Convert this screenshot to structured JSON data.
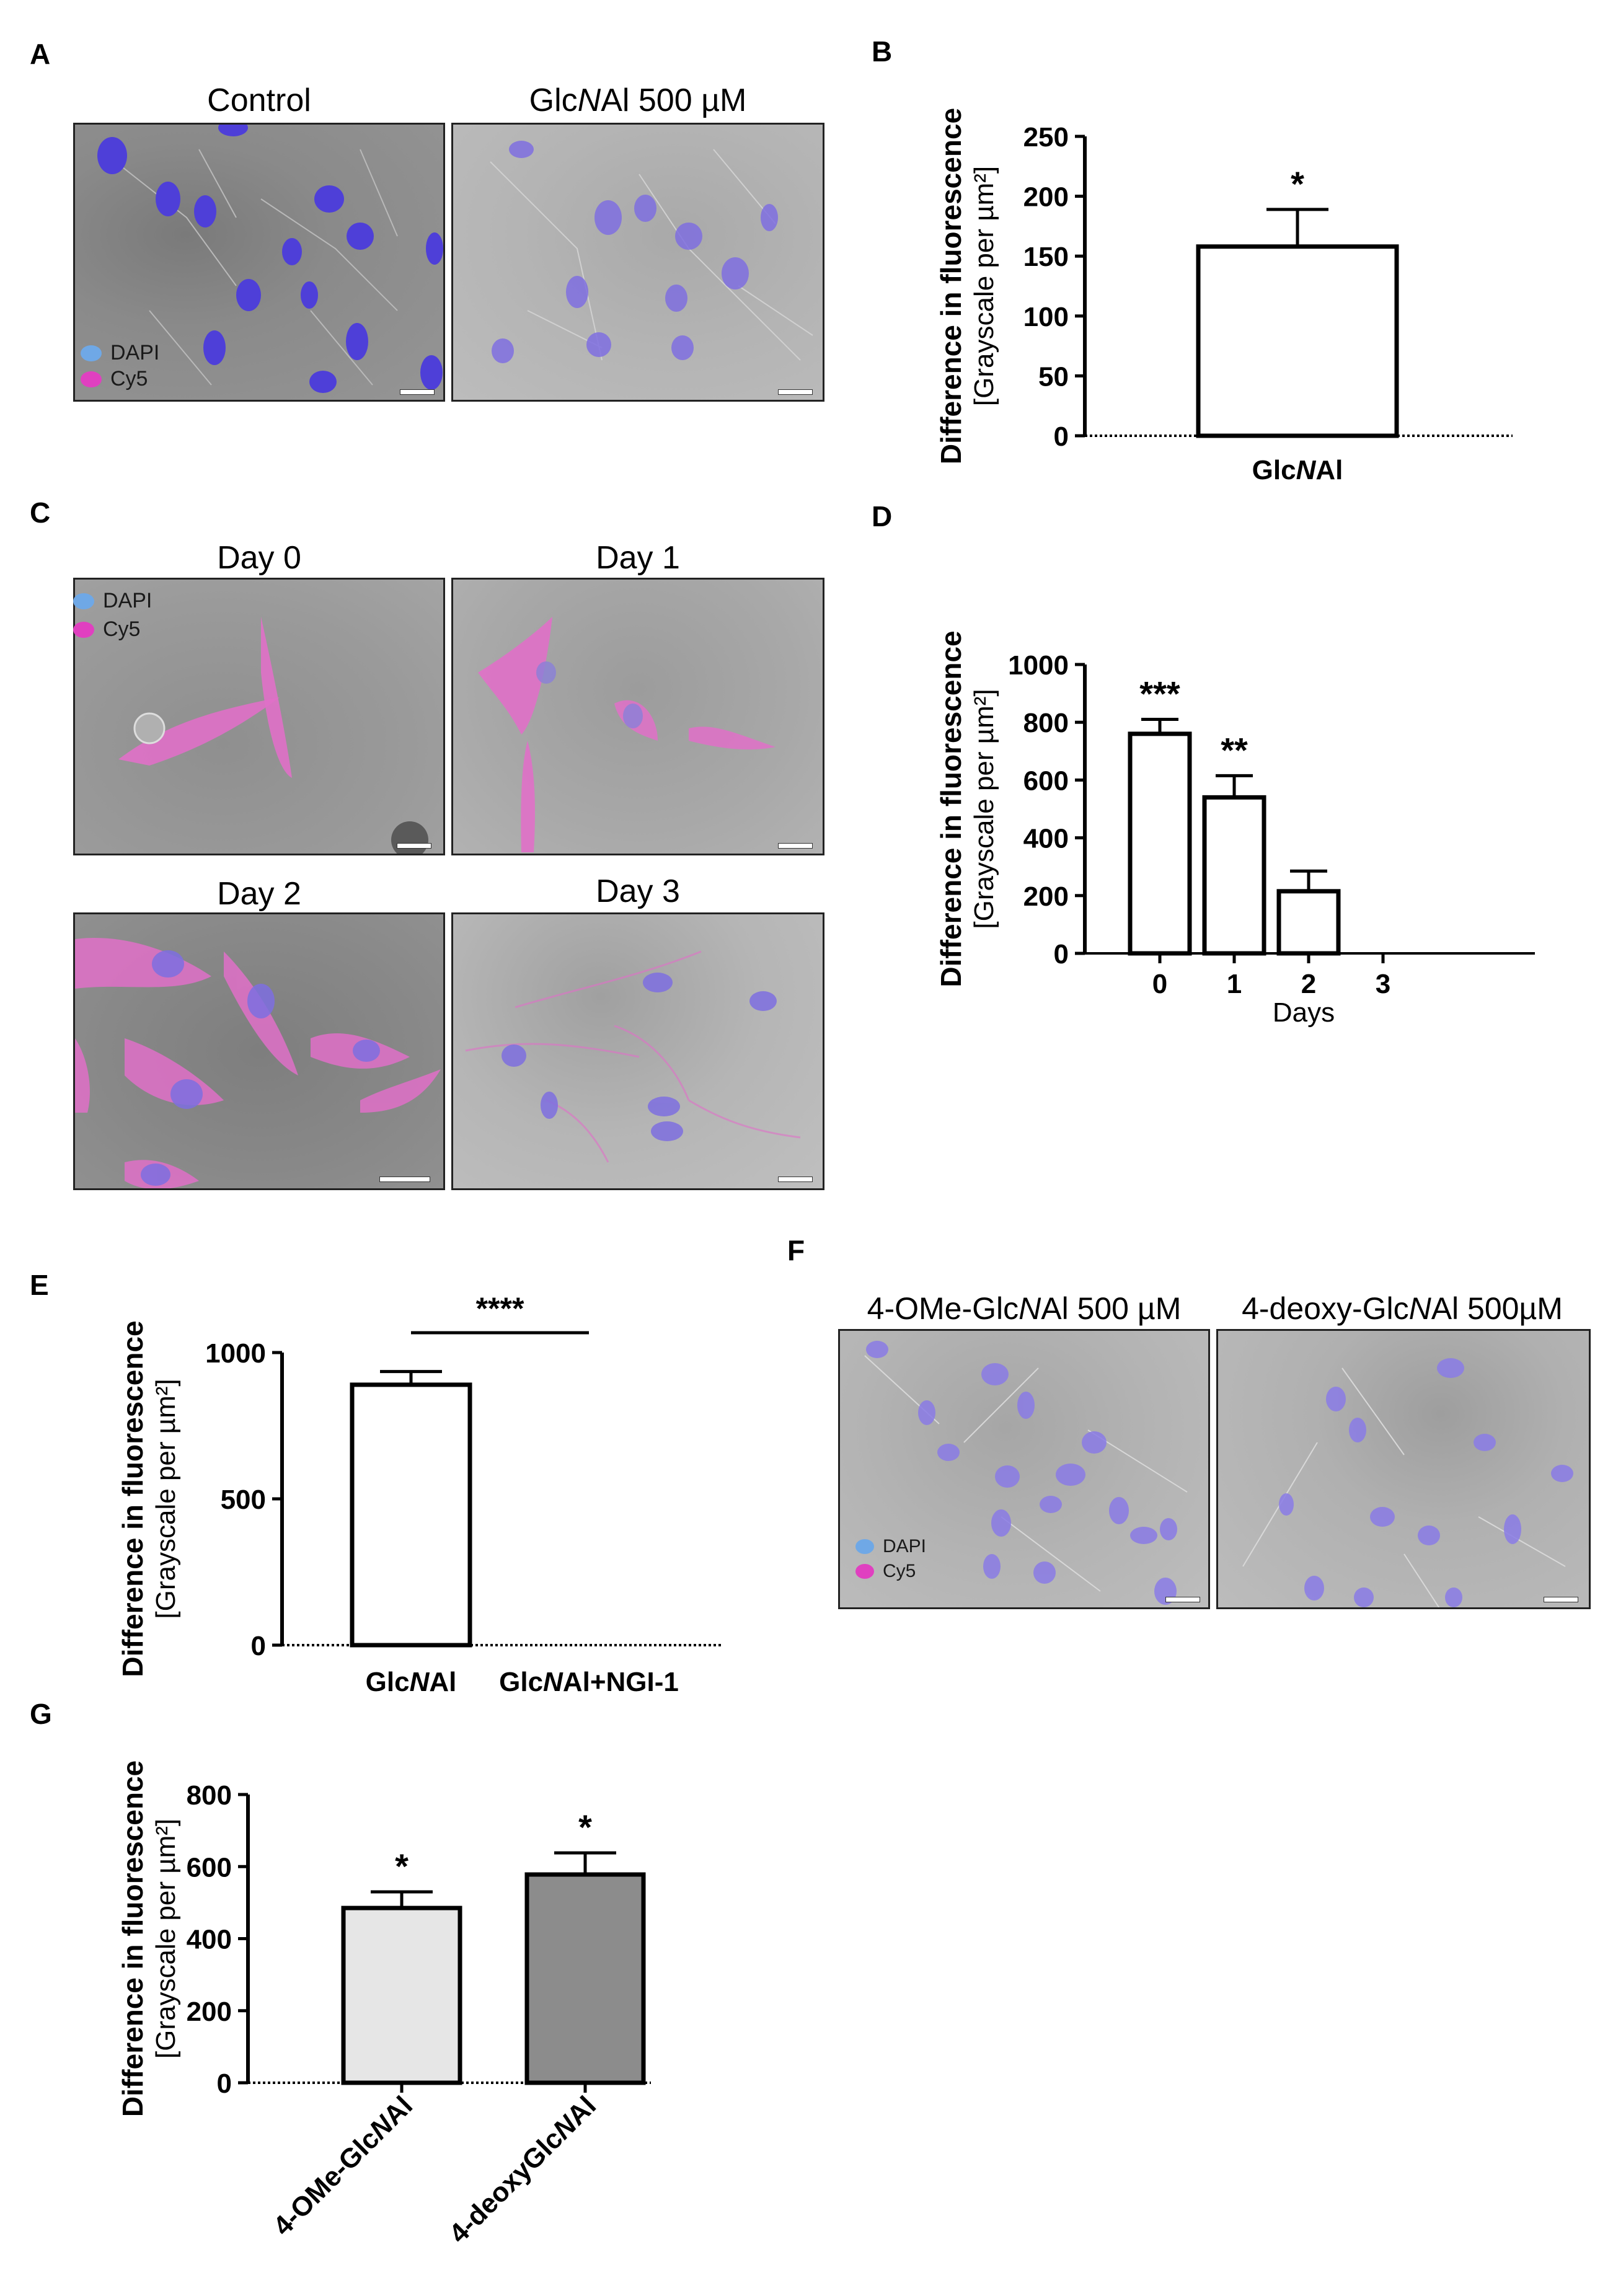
{
  "panels": {
    "A": {
      "letter": "A",
      "images": [
        {
          "title": "Control"
        },
        {
          "title_parts": [
            "Glc",
            "N",
            "Al 500 µM"
          ]
        }
      ],
      "legend": [
        {
          "label": "DAPI",
          "color": "#6fa8e6"
        },
        {
          "label": "Cy5",
          "color": "#e040c0"
        }
      ]
    },
    "B": {
      "letter": "B"
    },
    "C": {
      "letter": "C",
      "images": [
        {
          "title": "Day 0"
        },
        {
          "title": "Day 1"
        },
        {
          "title": "Day 2"
        },
        {
          "title": "Day 3"
        }
      ],
      "legend": [
        {
          "label": "DAPI",
          "color": "#6fa8e6"
        },
        {
          "label": "Cy5",
          "color": "#e040c0"
        }
      ]
    },
    "D": {
      "letter": "D"
    },
    "E": {
      "letter": "E"
    },
    "F": {
      "letter": "F",
      "images": [
        {
          "title_parts": [
            "4-OMe-Glc",
            "N",
            "Al 500 µM"
          ]
        },
        {
          "title_parts": [
            "4-deoxy-Glc",
            "N",
            "Al 500µM"
          ]
        }
      ],
      "legend": [
        {
          "label": "DAPI",
          "color": "#6fa8e6"
        },
        {
          "label": "Cy5",
          "color": "#e040c0"
        }
      ]
    },
    "G": {
      "letter": "G"
    }
  },
  "chart_data": [
    {
      "panel": "B",
      "type": "bar",
      "categories": [
        [
          "Glc",
          "N",
          "Al"
        ]
      ],
      "values": [
        158
      ],
      "errors": [
        31
      ],
      "significance": [
        "*"
      ],
      "ylabel_line1": "Difference in fluorescence",
      "ylabel_line2": "[Grayscale per µm²]",
      "ylim": [
        0,
        250
      ],
      "yticks": [
        0,
        50,
        100,
        150,
        200,
        250
      ],
      "bar_colors": [
        "#ffffff"
      ]
    },
    {
      "panel": "D",
      "type": "bar",
      "categories": [
        "0",
        "1",
        "2",
        "3"
      ],
      "values": [
        760,
        540,
        215,
        0
      ],
      "errors": [
        50,
        75,
        70,
        0
      ],
      "significance": [
        "***",
        "**",
        "",
        ""
      ],
      "xlabel": "Days",
      "ylabel_line1": "Difference in fluorescence",
      "ylabel_line2": "[Grayscale per µm²]",
      "ylim": [
        0,
        1000
      ],
      "yticks": [
        0,
        200,
        400,
        600,
        800,
        1000
      ],
      "bar_colors": [
        "#ffffff",
        "#ffffff",
        "#ffffff",
        "#ffffff"
      ]
    },
    {
      "panel": "E",
      "type": "bar",
      "categories": [
        [
          "Glc",
          "N",
          "Al"
        ],
        [
          "Glc",
          "N",
          "Al+NGI-1"
        ]
      ],
      "values": [
        890,
        0
      ],
      "errors": [
        45,
        0
      ],
      "comparison": {
        "between": [
          0,
          1
        ],
        "label": "****"
      },
      "ylabel_line1": "Difference in fluorescence",
      "ylabel_line2": "[Grayscale per µm²]",
      "ylim": [
        0,
        1000
      ],
      "yticks": [
        0,
        500,
        1000
      ],
      "bar_colors": [
        "#ffffff",
        "#ffffff"
      ]
    },
    {
      "panel": "G",
      "type": "bar",
      "categories": [
        [
          "4-OMe-Glc",
          "N",
          "Al"
        ],
        [
          "4-deoxyGlc",
          "N",
          "Al"
        ]
      ],
      "values": [
        485,
        578
      ],
      "errors": [
        45,
        60
      ],
      "significance": [
        "*",
        "*"
      ],
      "ylabel_line1": "Difference in fluorescence",
      "ylabel_line2": "[Grayscale per µm²]",
      "ylim": [
        0,
        800
      ],
      "yticks": [
        0,
        200,
        400,
        600,
        800
      ],
      "bar_colors": [
        "#e6e6e6",
        "#8c8c8c"
      ]
    }
  ]
}
